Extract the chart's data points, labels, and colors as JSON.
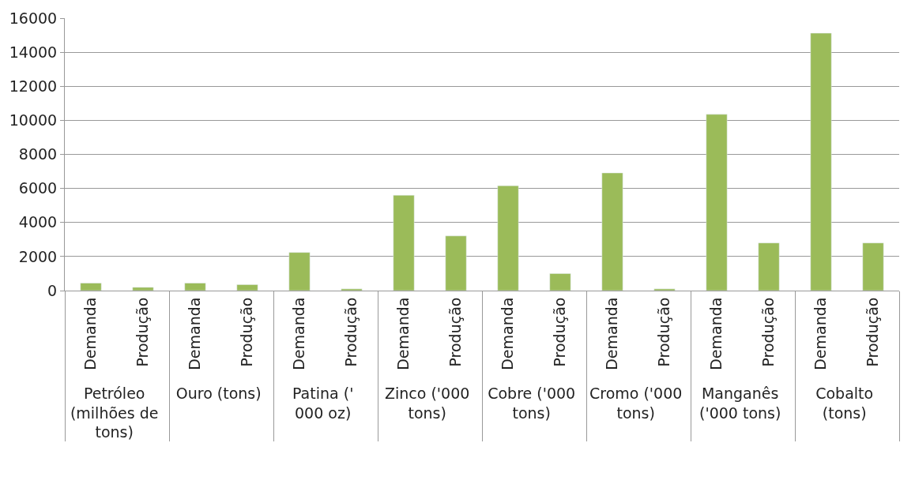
{
  "chart_data": {
    "type": "bar",
    "categories": [
      "Petróleo (milhões de tons)",
      "Ouro (tons)",
      "Patina (' 000 oz)",
      "Zinco ('000 tons)",
      "Cobre ('000 tons)",
      "Cromo ('000 tons)",
      "Manganês ('000 tons)",
      "Cobalto (tons)"
    ],
    "series": [
      {
        "name": "Demanda",
        "color": "#9bbb59",
        "values": [
          440,
          440,
          2240,
          5600,
          6160,
          6910,
          10350,
          15120
        ]
      },
      {
        "name": "Produção",
        "color": "#9bbb59",
        "values": [
          190,
          350,
          100,
          3210,
          1000,
          100,
          2800,
          2800
        ]
      }
    ],
    "ylim": [
      0,
      16000
    ],
    "yticks": [
      0,
      2000,
      4000,
      6000,
      8000,
      10000,
      12000,
      14000,
      16000
    ],
    "grid": "y",
    "legend": false
  }
}
